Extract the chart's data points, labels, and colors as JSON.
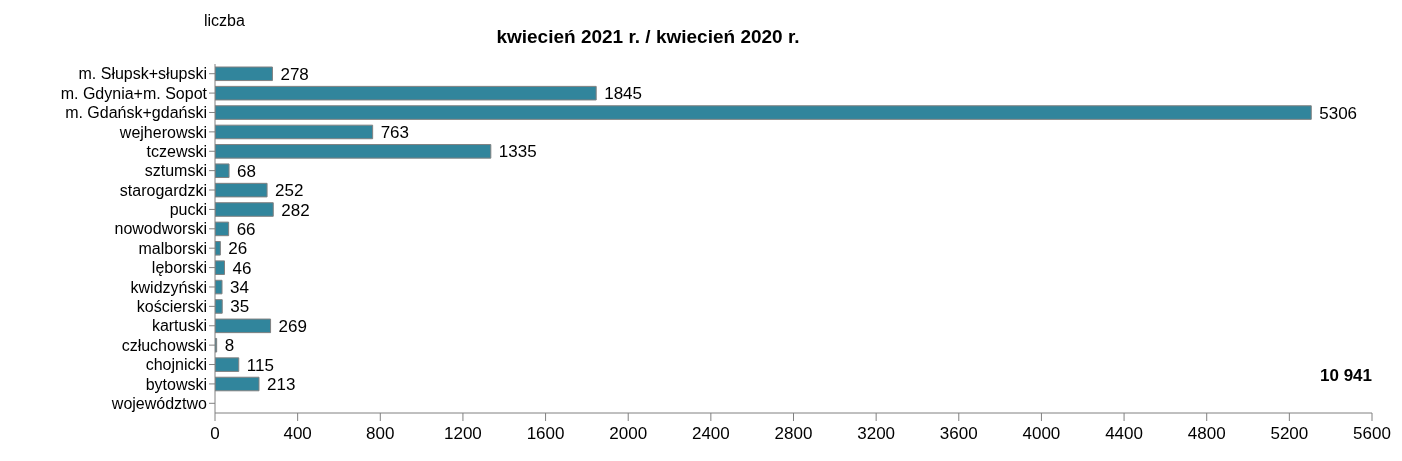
{
  "chart_data": {
    "type": "bar",
    "orientation": "horizontal",
    "title": "kwiecień 2021 r. / kwiecień 2020 r.",
    "annotations": [
      "liczba",
      "10 941"
    ],
    "categories": [
      "m. Słupsk+słupski",
      "m. Gdynia+m. Sopot",
      "m. Gdańsk+gdański",
      "wejherowski",
      "tczewski",
      "sztumski",
      "starogardzki",
      "pucki",
      "nowodworski",
      "malborski",
      "lęborski",
      "kwidzyński",
      "kościerski",
      "kartuski",
      "człuchowski",
      "chojnicki",
      "bytowski",
      "województwo"
    ],
    "values": [
      278,
      1845,
      5306,
      763,
      1335,
      68,
      252,
      282,
      66,
      26,
      46,
      34,
      35,
      269,
      8,
      115,
      213,
      null
    ],
    "color": "#31859c",
    "data_labels": true,
    "xlim": [
      0,
      5600
    ],
    "xticks": [
      0,
      400,
      800,
      1200,
      1600,
      2000,
      2400,
      2800,
      3200,
      3600,
      4000,
      4400,
      4800,
      5200,
      5600
    ],
    "grid": false,
    "legend": false
  }
}
